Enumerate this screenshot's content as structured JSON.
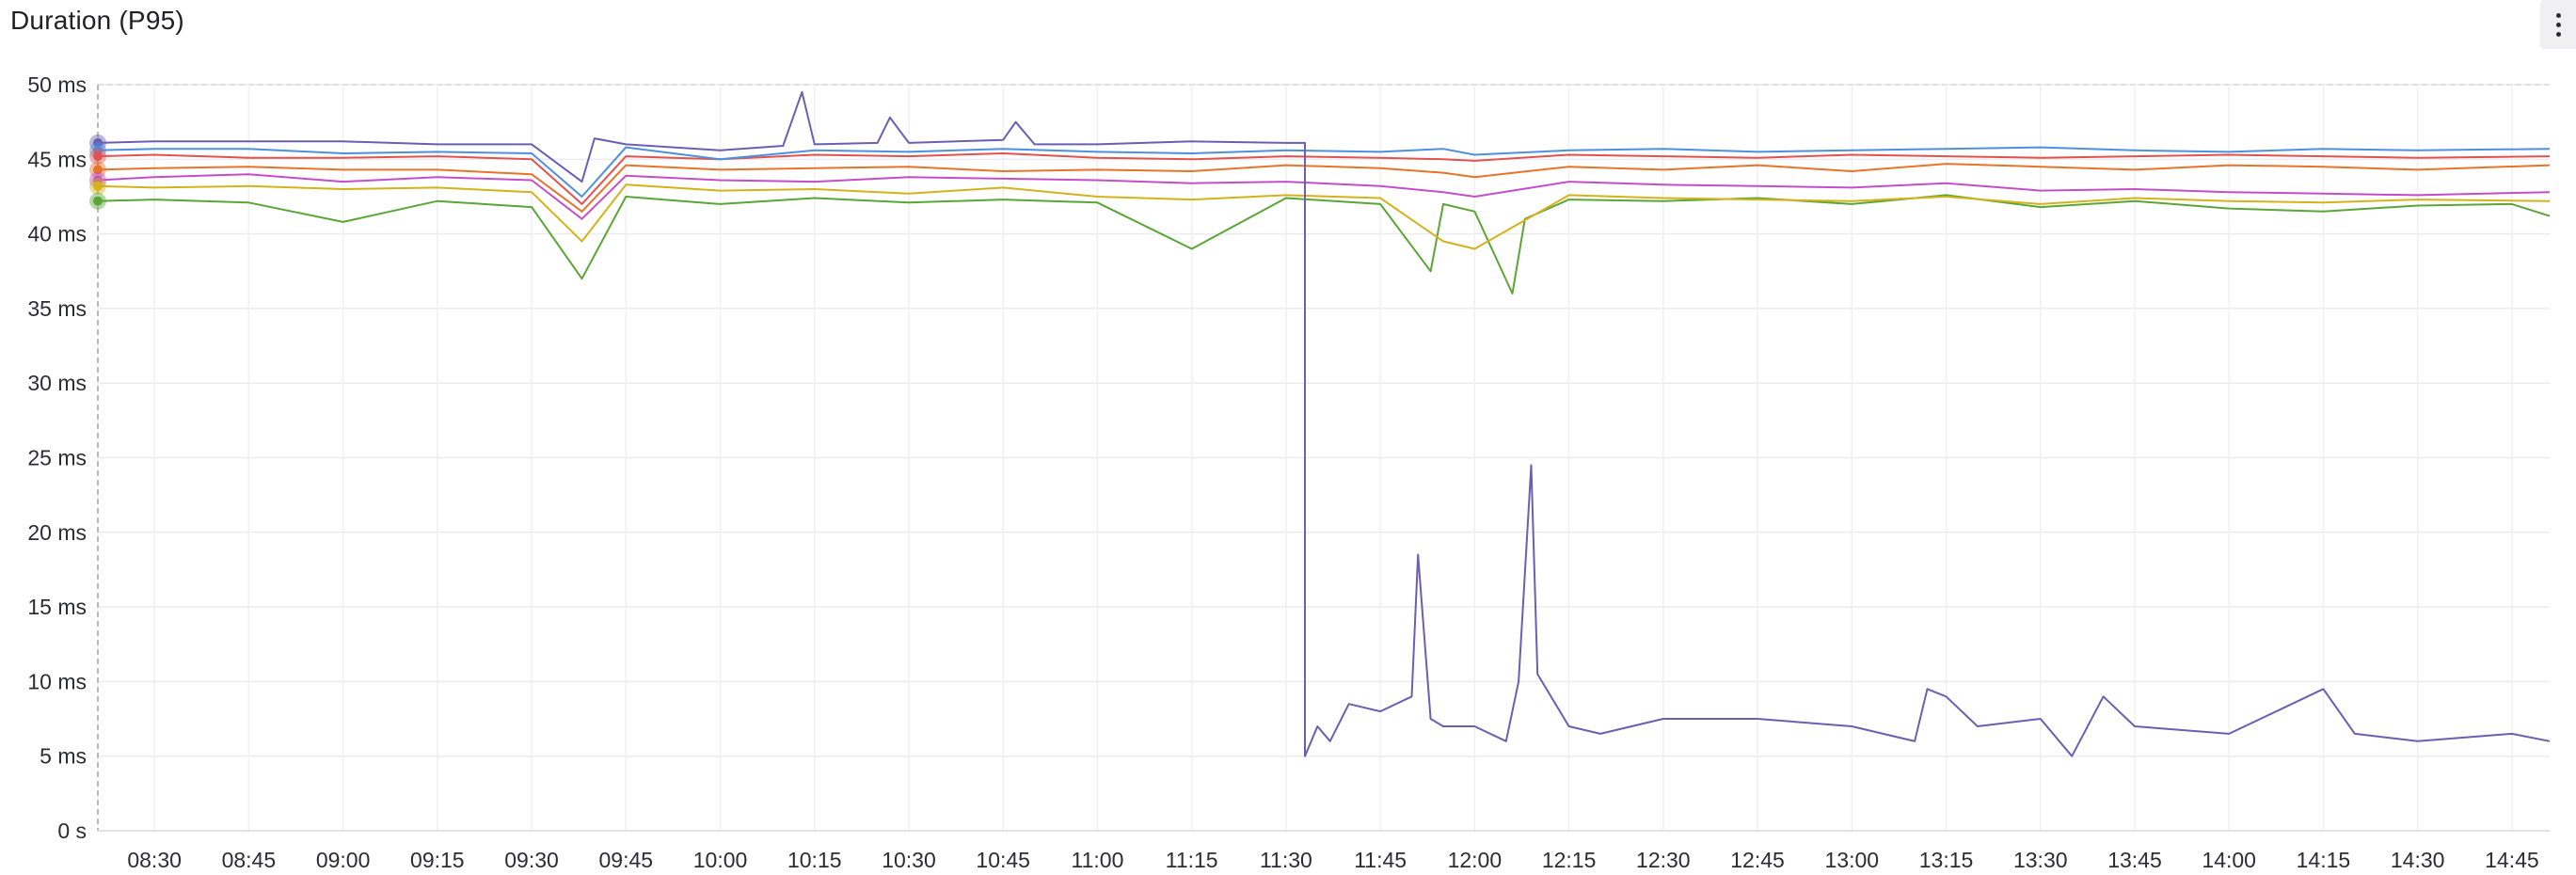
{
  "panel": {
    "title": "Duration (P95)"
  },
  "chart_data": {
    "type": "line",
    "title": "Duration (P95)",
    "xlabel": "",
    "ylabel": "",
    "ylim": [
      0,
      50
    ],
    "grid": true,
    "y_ticks": [
      "0 s",
      "5 ms",
      "10 ms",
      "15 ms",
      "20 ms",
      "25 ms",
      "30 ms",
      "35 ms",
      "40 ms",
      "45 ms",
      "50 ms"
    ],
    "x_ticks": [
      "08:30",
      "08:45",
      "09:00",
      "09:15",
      "09:30",
      "09:45",
      "10:00",
      "10:15",
      "10:30",
      "10:45",
      "11:00",
      "11:15",
      "11:30",
      "11:45",
      "12:00",
      "12:15",
      "12:30",
      "12:45",
      "13:00",
      "13:15",
      "13:30",
      "13:45",
      "14:00",
      "14:15",
      "14:30",
      "14:45"
    ],
    "x_range": [
      "08:21",
      "14:51"
    ],
    "series": [
      {
        "color": "#6a5fb0",
        "points": [
          [
            "08:21",
            46.1
          ],
          [
            "08:30",
            46.2
          ],
          [
            "08:45",
            46.2
          ],
          [
            "09:00",
            46.2
          ],
          [
            "09:15",
            46
          ],
          [
            "09:30",
            46
          ],
          [
            "09:38",
            43.5
          ],
          [
            "09:40",
            46.4
          ],
          [
            "09:45",
            46
          ],
          [
            "10:00",
            45.6
          ],
          [
            "10:10",
            45.9
          ],
          [
            "10:13",
            49.5
          ],
          [
            "10:15",
            46
          ],
          [
            "10:25",
            46.1
          ],
          [
            "10:27",
            47.8
          ],
          [
            "10:30",
            46.1
          ],
          [
            "10:45",
            46.3
          ],
          [
            "10:47",
            47.5
          ],
          [
            "10:50",
            46
          ],
          [
            "11:00",
            46
          ],
          [
            "11:15",
            46.2
          ],
          [
            "11:30",
            46.1
          ],
          [
            "11:33",
            46.1
          ],
          [
            "11:33",
            5
          ],
          [
            "11:35",
            7
          ],
          [
            "11:37",
            6
          ],
          [
            "11:40",
            8.5
          ],
          [
            "11:45",
            8
          ],
          [
            "11:50",
            9
          ],
          [
            "11:51",
            18.5
          ],
          [
            "11:53",
            7.5
          ],
          [
            "11:55",
            7
          ],
          [
            "12:00",
            7
          ],
          [
            "12:05",
            6
          ],
          [
            "12:07",
            10
          ],
          [
            "12:09",
            24.5
          ],
          [
            "12:10",
            10.5
          ],
          [
            "12:15",
            7
          ],
          [
            "12:20",
            6.5
          ],
          [
            "12:30",
            7.5
          ],
          [
            "12:45",
            7.5
          ],
          [
            "13:00",
            7
          ],
          [
            "13:10",
            6
          ],
          [
            "13:12",
            9.5
          ],
          [
            "13:15",
            9
          ],
          [
            "13:20",
            7
          ],
          [
            "13:30",
            7.5
          ],
          [
            "13:35",
            5
          ],
          [
            "13:40",
            9
          ],
          [
            "13:45",
            7
          ],
          [
            "14:00",
            6.5
          ],
          [
            "14:15",
            9.5
          ],
          [
            "14:20",
            6.5
          ],
          [
            "14:30",
            6
          ],
          [
            "14:45",
            6.5
          ],
          [
            "14:51",
            6
          ]
        ]
      },
      {
        "color": "#4f8fe0",
        "points": [
          [
            "08:21",
            45.6
          ],
          [
            "08:30",
            45.7
          ],
          [
            "08:45",
            45.7
          ],
          [
            "09:00",
            45.4
          ],
          [
            "09:15",
            45.5
          ],
          [
            "09:30",
            45.4
          ],
          [
            "09:38",
            42.5
          ],
          [
            "09:45",
            45.8
          ],
          [
            "10:00",
            45
          ],
          [
            "10:15",
            45.6
          ],
          [
            "10:30",
            45.5
          ],
          [
            "10:45",
            45.7
          ],
          [
            "11:00",
            45.5
          ],
          [
            "11:15",
            45.4
          ],
          [
            "11:30",
            45.6
          ],
          [
            "11:45",
            45.5
          ],
          [
            "11:55",
            45.7
          ],
          [
            "12:00",
            45.3
          ],
          [
            "12:15",
            45.6
          ],
          [
            "12:30",
            45.7
          ],
          [
            "12:45",
            45.5
          ],
          [
            "13:00",
            45.6
          ],
          [
            "13:15",
            45.7
          ],
          [
            "13:30",
            45.8
          ],
          [
            "13:45",
            45.6
          ],
          [
            "14:00",
            45.5
          ],
          [
            "14:15",
            45.7
          ],
          [
            "14:30",
            45.6
          ],
          [
            "14:51",
            45.7
          ]
        ]
      },
      {
        "color": "#e0534f",
        "points": [
          [
            "08:21",
            45.2
          ],
          [
            "08:30",
            45.3
          ],
          [
            "08:45",
            45.1
          ],
          [
            "09:00",
            45.1
          ],
          [
            "09:15",
            45.2
          ],
          [
            "09:30",
            45
          ],
          [
            "09:38",
            42
          ],
          [
            "09:45",
            45.2
          ],
          [
            "10:00",
            45
          ],
          [
            "10:15",
            45.3
          ],
          [
            "10:30",
            45.2
          ],
          [
            "10:45",
            45.4
          ],
          [
            "11:00",
            45.1
          ],
          [
            "11:15",
            45
          ],
          [
            "11:30",
            45.2
          ],
          [
            "11:45",
            45.1
          ],
          [
            "11:55",
            45
          ],
          [
            "12:00",
            44.9
          ],
          [
            "12:15",
            45.3
          ],
          [
            "12:30",
            45.2
          ],
          [
            "12:45",
            45.1
          ],
          [
            "13:00",
            45.3
          ],
          [
            "13:15",
            45.2
          ],
          [
            "13:30",
            45.1
          ],
          [
            "13:45",
            45.2
          ],
          [
            "14:00",
            45.3
          ],
          [
            "14:15",
            45.2
          ],
          [
            "14:30",
            45.1
          ],
          [
            "14:51",
            45.2
          ]
        ]
      },
      {
        "color": "#e8732a",
        "points": [
          [
            "08:21",
            44.3
          ],
          [
            "08:30",
            44.4
          ],
          [
            "08:45",
            44.5
          ],
          [
            "09:00",
            44.3
          ],
          [
            "09:15",
            44.3
          ],
          [
            "09:30",
            44
          ],
          [
            "09:38",
            41.5
          ],
          [
            "09:45",
            44.6
          ],
          [
            "10:00",
            44.3
          ],
          [
            "10:15",
            44.4
          ],
          [
            "10:30",
            44.5
          ],
          [
            "10:45",
            44.2
          ],
          [
            "11:00",
            44.3
          ],
          [
            "11:15",
            44.2
          ],
          [
            "11:30",
            44.6
          ],
          [
            "11:45",
            44.4
          ],
          [
            "11:55",
            44.1
          ],
          [
            "12:00",
            43.8
          ],
          [
            "12:15",
            44.5
          ],
          [
            "12:30",
            44.3
          ],
          [
            "12:45",
            44.6
          ],
          [
            "13:00",
            44.2
          ],
          [
            "13:15",
            44.7
          ],
          [
            "13:30",
            44.5
          ],
          [
            "13:45",
            44.3
          ],
          [
            "14:00",
            44.6
          ],
          [
            "14:15",
            44.5
          ],
          [
            "14:30",
            44.3
          ],
          [
            "14:51",
            44.6
          ]
        ]
      },
      {
        "color": "#c24fc9",
        "points": [
          [
            "08:21",
            43.6
          ],
          [
            "08:30",
            43.8
          ],
          [
            "08:45",
            44
          ],
          [
            "09:00",
            43.5
          ],
          [
            "09:15",
            43.8
          ],
          [
            "09:30",
            43.6
          ],
          [
            "09:38",
            41
          ],
          [
            "09:45",
            43.9
          ],
          [
            "10:00",
            43.6
          ],
          [
            "10:15",
            43.5
          ],
          [
            "10:30",
            43.8
          ],
          [
            "10:45",
            43.7
          ],
          [
            "11:00",
            43.6
          ],
          [
            "11:15",
            43.4
          ],
          [
            "11:30",
            43.5
          ],
          [
            "11:45",
            43.2
          ],
          [
            "11:55",
            42.8
          ],
          [
            "12:00",
            42.5
          ],
          [
            "12:15",
            43.5
          ],
          [
            "12:30",
            43.3
          ],
          [
            "12:45",
            43.2
          ],
          [
            "13:00",
            43.1
          ],
          [
            "13:15",
            43.4
          ],
          [
            "13:30",
            42.9
          ],
          [
            "13:45",
            43
          ],
          [
            "14:00",
            42.8
          ],
          [
            "14:15",
            42.7
          ],
          [
            "14:30",
            42.6
          ],
          [
            "14:51",
            42.8
          ]
        ]
      },
      {
        "color": "#d3b31c",
        "points": [
          [
            "08:21",
            43.2
          ],
          [
            "08:30",
            43.1
          ],
          [
            "08:45",
            43.2
          ],
          [
            "09:00",
            43
          ],
          [
            "09:15",
            43.1
          ],
          [
            "09:30",
            42.8
          ],
          [
            "09:38",
            39.5
          ],
          [
            "09:45",
            43.3
          ],
          [
            "10:00",
            42.9
          ],
          [
            "10:15",
            43
          ],
          [
            "10:30",
            42.7
          ],
          [
            "10:45",
            43.1
          ],
          [
            "11:00",
            42.5
          ],
          [
            "11:15",
            42.3
          ],
          [
            "11:30",
            42.6
          ],
          [
            "11:45",
            42.4
          ],
          [
            "11:55",
            39.5
          ],
          [
            "12:00",
            39
          ],
          [
            "12:15",
            42.6
          ],
          [
            "12:30",
            42.4
          ],
          [
            "12:45",
            42.3
          ],
          [
            "13:00",
            42.2
          ],
          [
            "13:15",
            42.5
          ],
          [
            "13:30",
            42
          ],
          [
            "13:45",
            42.4
          ],
          [
            "14:00",
            42.2
          ],
          [
            "14:15",
            42.1
          ],
          [
            "14:30",
            42.3
          ],
          [
            "14:51",
            42.2
          ]
        ]
      },
      {
        "color": "#5aa636",
        "points": [
          [
            "08:21",
            42.2
          ],
          [
            "08:30",
            42.3
          ],
          [
            "08:45",
            42.1
          ],
          [
            "09:00",
            40.8
          ],
          [
            "09:15",
            42.2
          ],
          [
            "09:30",
            41.8
          ],
          [
            "09:38",
            37
          ],
          [
            "09:45",
            42.5
          ],
          [
            "10:00",
            42
          ],
          [
            "10:15",
            42.4
          ],
          [
            "10:30",
            42.1
          ],
          [
            "10:45",
            42.3
          ],
          [
            "11:00",
            42.1
          ],
          [
            "11:15",
            39
          ],
          [
            "11:30",
            42.4
          ],
          [
            "11:45",
            42
          ],
          [
            "11:53",
            37.5
          ],
          [
            "11:55",
            42
          ],
          [
            "12:00",
            41.5
          ],
          [
            "12:06",
            36
          ],
          [
            "12:08",
            41
          ],
          [
            "12:15",
            42.3
          ],
          [
            "12:30",
            42.2
          ],
          [
            "12:45",
            42.4
          ],
          [
            "13:00",
            42
          ],
          [
            "13:15",
            42.6
          ],
          [
            "13:30",
            41.8
          ],
          [
            "13:45",
            42.2
          ],
          [
            "14:00",
            41.7
          ],
          [
            "14:15",
            41.5
          ],
          [
            "14:30",
            41.9
          ],
          [
            "14:45",
            42
          ],
          [
            "14:51",
            41.2
          ]
        ]
      }
    ]
  }
}
